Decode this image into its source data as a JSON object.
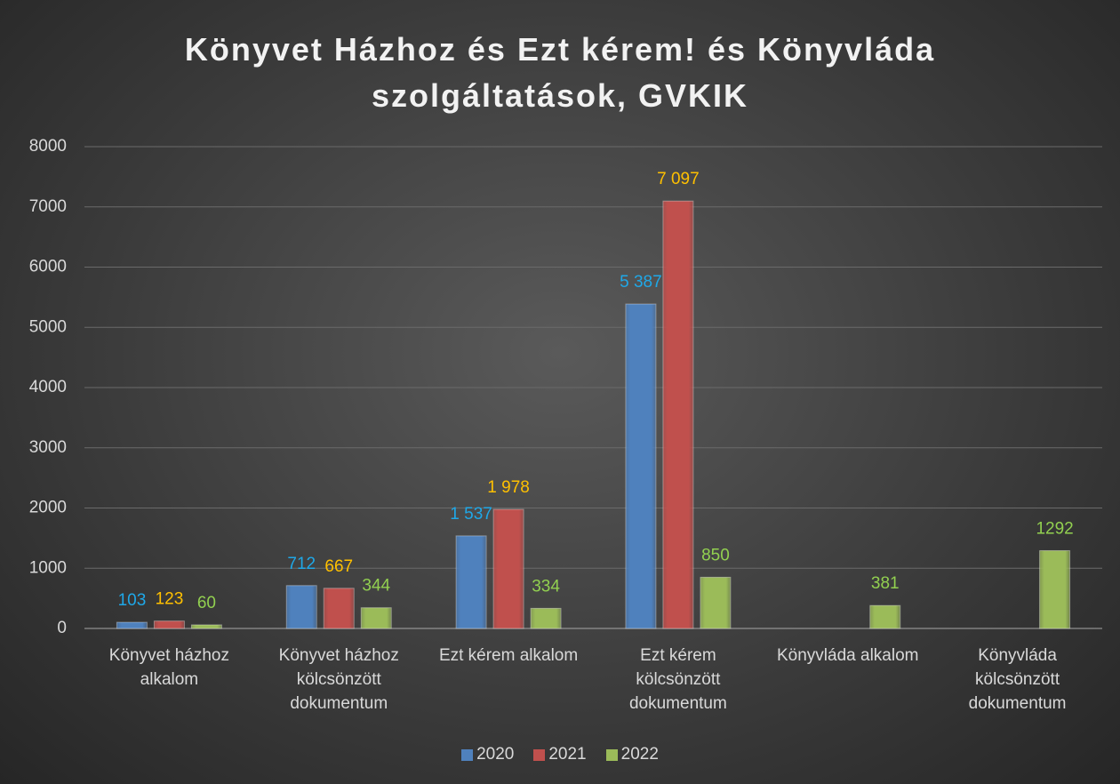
{
  "chart_data": {
    "type": "bar",
    "title": "Könyvet Házhoz és Ezt kérem! és Könyvláda szolgáltatások, GVKIK",
    "categories": [
      "Könyvet házhoz alkalom",
      "Könyvet házhoz kölcsönzött dokumentum",
      "Ezt kérem alkalom",
      "Ezt kérem kölcsönzött dokumentum",
      "Könyvláda alkalom",
      "Könyvláda kölcsönzött dokumentum"
    ],
    "series": [
      {
        "name": "2020",
        "color": "#4f81bd",
        "label_color": "#1fa8e8",
        "values": [
          103,
          712,
          1537,
          5387,
          null,
          null
        ],
        "value_labels": [
          "103",
          "712",
          "1 537",
          "5 387",
          null,
          null
        ]
      },
      {
        "name": "2021",
        "color": "#c0504d",
        "label_color": "#ffc000",
        "values": [
          123,
          667,
          1978,
          7097,
          null,
          null
        ],
        "value_labels": [
          "123",
          "667",
          "1 978",
          "7 097",
          null,
          null
        ]
      },
      {
        "name": "2022",
        "color": "#9bbb59",
        "label_color": "#92d050",
        "values": [
          60,
          344,
          334,
          850,
          381,
          1292
        ]
      }
    ],
    "ylim": [
      0,
      8000
    ],
    "yticks": [
      0,
      1000,
      2000,
      3000,
      4000,
      5000,
      6000,
      7000,
      8000
    ],
    "grid": true,
    "legend": "bottom"
  }
}
